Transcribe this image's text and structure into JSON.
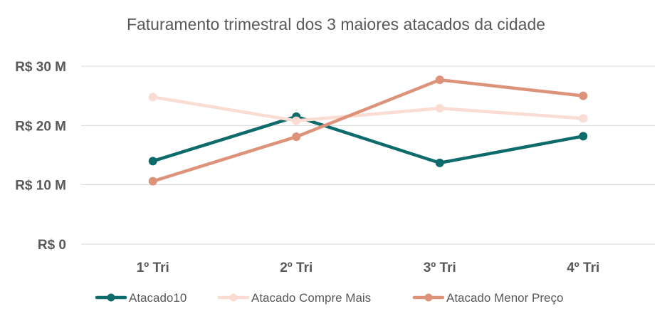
{
  "chart_data": {
    "type": "line",
    "title": "Faturamento trimestral dos 3 maiores atacados da cidade",
    "categories": [
      "1º Tri",
      "2º Tri",
      "3º Tri",
      "4º Tri"
    ],
    "y_ticks": [
      "R$ 0",
      "R$ 10 M",
      "R$ 20 M",
      "R$ 30 M"
    ],
    "y_tick_values": [
      0,
      10,
      20,
      30
    ],
    "ylim": [
      0,
      30
    ],
    "y_unit": "R$ M",
    "grid": true,
    "legend_position": "bottom",
    "series": [
      {
        "name": "Atacado10",
        "color": "#0e6b6b",
        "values": [
          14.0,
          21.5,
          13.7,
          18.2
        ]
      },
      {
        "name": "Atacado Compre Mais",
        "color": "#fbdcd2",
        "values": [
          24.8,
          20.8,
          22.9,
          21.2
        ]
      },
      {
        "name": "Atacado Menor Preço",
        "color": "#dc9379",
        "values": [
          10.6,
          18.1,
          27.7,
          25.0
        ]
      }
    ]
  }
}
